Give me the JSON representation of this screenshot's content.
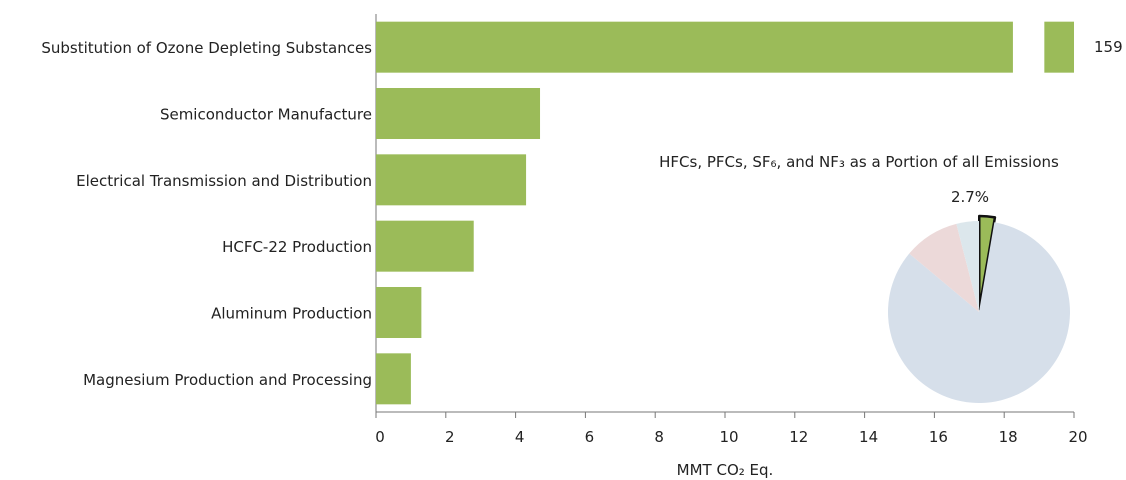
{
  "chart_data": [
    {
      "type": "bar",
      "orientation": "horizontal",
      "categories": [
        "Substitution of Ozone Depleting Substances",
        "Semiconductor Manufacture",
        "Electrical Transmission and Distribution",
        "HCFC-22 Production",
        "Aluminum Production",
        "Magnesium Production and Processing"
      ],
      "values": [
        159,
        4.7,
        4.3,
        2.8,
        1.3,
        1.0
      ],
      "value_labels": [
        "159",
        "",
        "",
        "",
        "",
        ""
      ],
      "broken_axis_categories": [
        "Substitution of Ozone Depleting Substances"
      ],
      "xlabel": "MMT CO₂ Eq.",
      "xlim": [
        0,
        20
      ],
      "xticks": [
        "0",
        "2",
        "4",
        "6",
        "8",
        "10",
        "12",
        "14",
        "16",
        "18",
        "20"
      ],
      "bar_color": "#9bbb59",
      "grid": false
    },
    {
      "type": "pie",
      "title": "HFCs, PFCs, SF₆, and NF₃ as a Portion of all Emissions",
      "highlight_label": "2.7%",
      "slices": [
        {
          "value": 2.7,
          "color": "#9bbb59",
          "highlighted": true
        },
        {
          "value": 83.4,
          "color": "#d6dfea"
        },
        {
          "value": 9.9,
          "color": "#ecd9d9"
        },
        {
          "value": 4.0,
          "color": "#dce7ec"
        }
      ]
    }
  ]
}
